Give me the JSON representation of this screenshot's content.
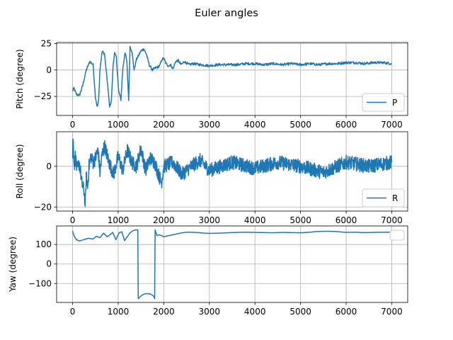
{
  "figure": {
    "title": "Euler angles"
  },
  "chart_data": [
    {
      "type": "line",
      "ylabel": "Pitch (degree)",
      "xlim": [
        -350,
        7350
      ],
      "ylim": [
        -43,
        26
      ],
      "xticks": [
        0,
        1000,
        2000,
        3000,
        4000,
        5000,
        6000,
        7000
      ],
      "yticks": [
        -25,
        0,
        25
      ],
      "grid": true,
      "legend_position": "lower-right",
      "series": [
        {
          "name": "P",
          "color": "#1f77b4",
          "x": [
            0,
            30,
            80,
            150,
            220,
            300,
            380,
            450,
            500,
            540,
            570,
            600,
            650,
            700,
            760,
            810,
            850,
            890,
            920,
            960,
            1010,
            1060,
            1100,
            1150,
            1190,
            1230,
            1260,
            1300,
            1350,
            1400,
            1450,
            1500,
            1560,
            1620,
            1680,
            1750,
            1820,
            1880,
            1920,
            1960,
            2000,
            2050,
            2100,
            2150,
            2200,
            2260,
            2320,
            2380,
            2450,
            2550,
            2650,
            2800,
            3000,
            3200,
            3400,
            3600,
            3800,
            4000,
            4200,
            4400,
            4600,
            4800,
            5000,
            5200,
            5400,
            5600,
            5800,
            6000,
            6200,
            6400,
            6600,
            6800,
            7000
          ],
          "values": [
            -20,
            -17,
            -23,
            -24,
            -15,
            0,
            8,
            5,
            -25,
            -35,
            -30,
            0,
            18,
            15,
            -10,
            -34,
            -30,
            5,
            16,
            12,
            -20,
            -28,
            0,
            17,
            8,
            -28,
            22,
            18,
            0,
            10,
            14,
            18,
            20,
            15,
            5,
            0,
            2,
            3,
            5,
            10,
            11,
            6,
            4,
            5,
            1,
            8,
            9,
            5,
            8,
            5,
            6,
            5,
            4,
            5,
            5,
            5,
            6,
            6,
            5,
            6,
            5,
            6,
            5,
            6,
            5,
            6,
            6,
            7,
            7,
            6,
            7,
            7,
            6
          ]
        }
      ]
    },
    {
      "type": "line",
      "ylabel": "Roll (degree)",
      "xlim": [
        -350,
        7350
      ],
      "ylim": [
        -22,
        17
      ],
      "xticks": [
        0,
        1000,
        2000,
        3000,
        4000,
        5000,
        6000,
        7000
      ],
      "yticks": [
        -20,
        0
      ],
      "grid": true,
      "legend_position": "lower-right",
      "series": [
        {
          "name": "R",
          "color": "#1f77b4",
          "x": [
            0,
            10,
            20,
            40,
            60,
            100,
            150,
            200,
            250,
            280,
            300,
            330,
            360,
            400,
            450,
            500,
            560,
            600,
            650,
            700,
            800,
            900,
            1000,
            1100,
            1200,
            1300,
            1400,
            1500,
            1600,
            1700,
            1800,
            1900,
            1950,
            2000,
            2200,
            2400,
            2600,
            2800,
            3000,
            3500,
            4000,
            4500,
            5000,
            5500,
            6000,
            6500,
            7000
          ],
          "values": [
            5,
            15,
            8,
            0,
            5,
            -2,
            2,
            -8,
            -12,
            -19,
            -5,
            -10,
            0,
            5,
            2,
            4,
            8,
            -3,
            6,
            10,
            2,
            -4,
            5,
            -2,
            8,
            2,
            0,
            9,
            -2,
            4,
            2,
            -5,
            -8,
            0,
            2,
            -4,
            0,
            3,
            -2,
            2,
            -1,
            2,
            0,
            -3,
            2,
            0,
            2
          ]
        }
      ]
    },
    {
      "type": "line",
      "ylabel": "Yaw (degree)",
      "xlim": [
        -350,
        7350
      ],
      "ylim": [
        -197,
        195
      ],
      "xticks": [
        0,
        1000,
        2000,
        3000,
        4000,
        5000,
        6000,
        7000
      ],
      "yticks": [
        -100,
        0,
        100
      ],
      "grid": true,
      "legend_position": "upper-right",
      "series": [
        {
          "name": "",
          "color": "#1f77b4",
          "x": [
            0,
            30,
            80,
            150,
            250,
            350,
            450,
            520,
            600,
            680,
            760,
            820,
            880,
            950,
            1020,
            1080,
            1140,
            1200,
            1260,
            1320,
            1380,
            1430,
            1440,
            1480,
            1530,
            1600,
            1660,
            1720,
            1780,
            1800,
            1810,
            1850,
            1900,
            1950,
            2000,
            2050,
            2100,
            2200,
            2300,
            2400,
            2500,
            2600,
            2700,
            2800,
            2900,
            3000,
            3200,
            3400,
            3600,
            3800,
            4000,
            4200,
            4400,
            4600,
            4800,
            5000,
            5200,
            5400,
            5600,
            5800,
            6000,
            6200,
            6400,
            6600,
            6800,
            7000
          ],
          "values": [
            170,
            145,
            125,
            118,
            125,
            132,
            128,
            142,
            135,
            158,
            140,
            150,
            162,
            125,
            160,
            165,
            120,
            140,
            160,
            170,
            175,
            175,
            -178,
            -168,
            -158,
            -152,
            -152,
            -155,
            -165,
            -178,
            175,
            145,
            150,
            145,
            140,
            142,
            145,
            150,
            155,
            160,
            163,
            163,
            162,
            160,
            158,
            157,
            158,
            160,
            162,
            163,
            162,
            161,
            160,
            162,
            161,
            160,
            163,
            167,
            168,
            166,
            162,
            163,
            161,
            162,
            163,
            163
          ]
        }
      ]
    }
  ]
}
